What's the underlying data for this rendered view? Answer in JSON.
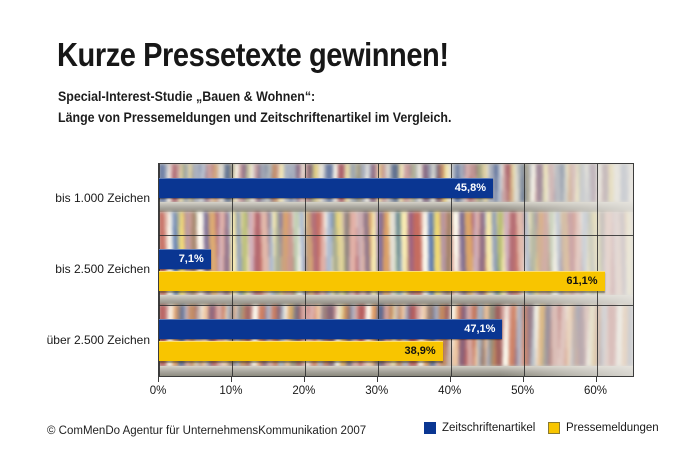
{
  "title": "Kurze Pressetexte gewinnen!",
  "subtitle": {
    "line1": "Special-Interest-Studie „Bauen & Wohnen“:",
    "line2": "Länge von Pressemeldungen und Zeitschriftenartikel im Vergleich."
  },
  "footer": {
    "copyright": "© ComMenDo Agentur für UnternehmensKommunikation 2007"
  },
  "legend": {
    "items": [
      {
        "label": "Zeitschriftenartikel",
        "color": "#0a3692"
      },
      {
        "label": "Pressemeldungen",
        "color": "#f8c500"
      }
    ]
  },
  "chart_data": {
    "type": "bar",
    "orientation": "horizontal",
    "title": "Kurze Pressetexte gewinnen!",
    "categories": [
      "bis 1.000 Zeichen",
      "bis 2.500 Zeichen",
      "über 2.500 Zeichen"
    ],
    "series": [
      {
        "name": "Zeitschriftenartikel",
        "color": "#0a3692",
        "label_color": "#ffffff",
        "values": [
          45.8,
          7.1,
          47.1
        ],
        "value_labels": [
          "45,8%",
          "7,1%",
          "47,1%"
        ]
      },
      {
        "name": "Pressemeldungen",
        "color": "#f8c500",
        "label_color": "#111111",
        "values": [
          0,
          61.1,
          38.9
        ],
        "value_labels": [
          "",
          "61,1%",
          "38,9%"
        ]
      }
    ],
    "x_ticks": [
      "0%",
      "10%",
      "20%",
      "30%",
      "40%",
      "50%",
      "60%"
    ],
    "x_tick_values": [
      0,
      10,
      20,
      30,
      40,
      50,
      60
    ],
    "xlim": [
      0,
      65
    ],
    "grid": true,
    "legend_position": "bottom-right",
    "plot_background": "photo-of-magazine-shelves"
  }
}
